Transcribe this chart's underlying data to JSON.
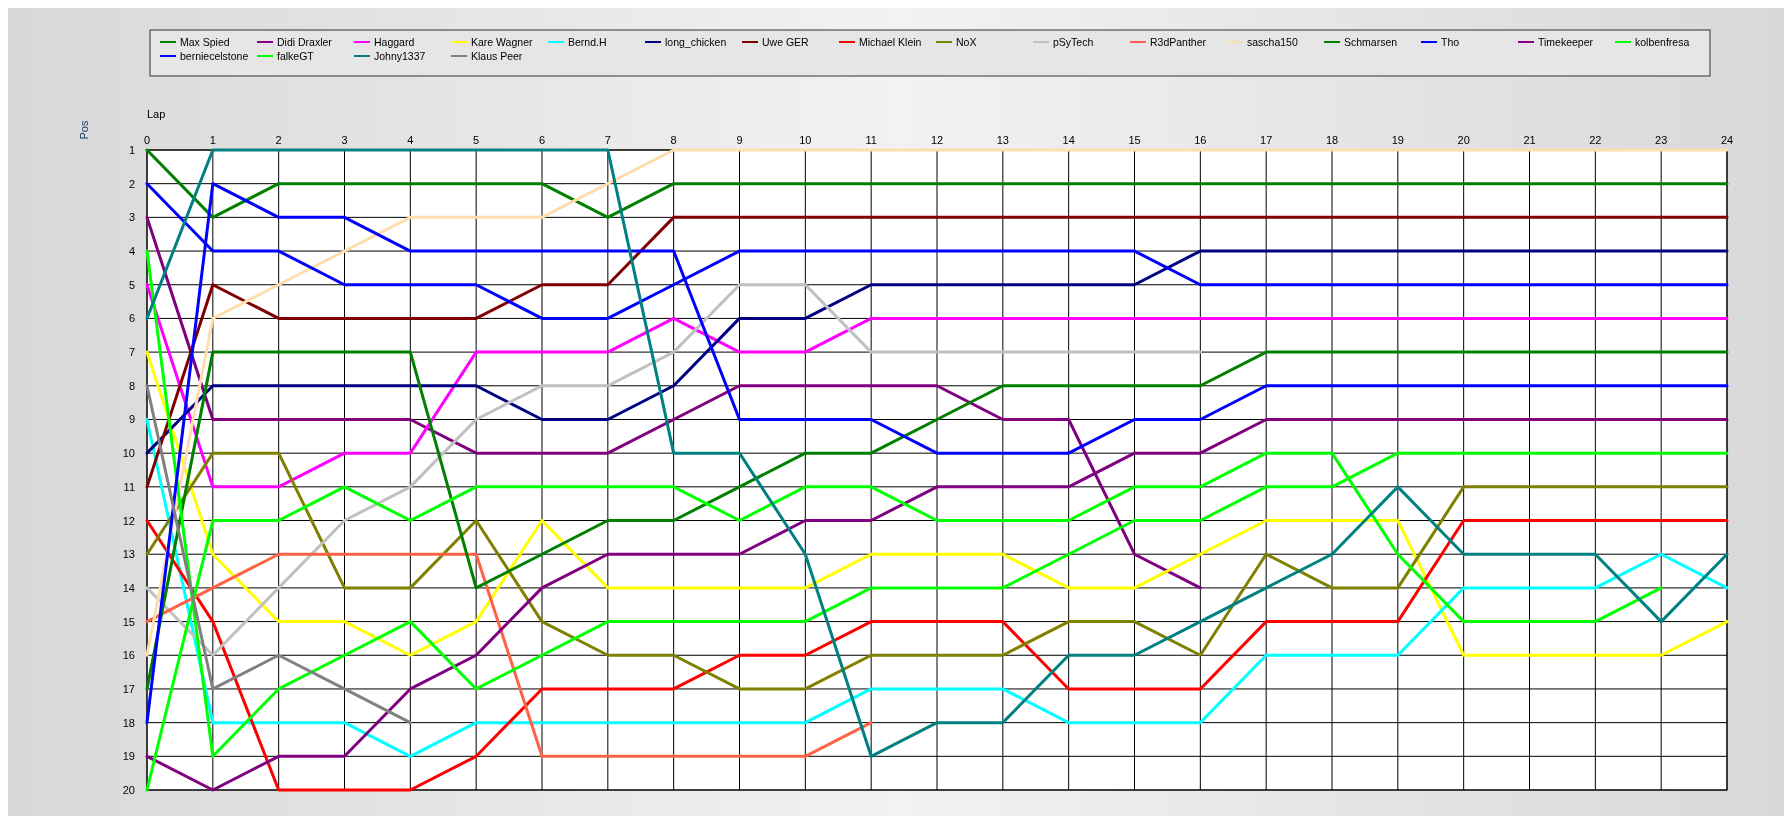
{
  "chart_data": {
    "type": "line",
    "xlabel": "Lap",
    "ylabel": "Pos",
    "legend": "top",
    "grid": true,
    "x": [
      0,
      1,
      2,
      3,
      4,
      5,
      6,
      7,
      8,
      9,
      10,
      11,
      12,
      13,
      14,
      15,
      16,
      17,
      18,
      19,
      20,
      21,
      22,
      23,
      24
    ],
    "xlim": [
      0,
      24
    ],
    "xticks": [
      0,
      1,
      2,
      3,
      4,
      5,
      6,
      7,
      8,
      9,
      10,
      11,
      12,
      13,
      14,
      15,
      16,
      17,
      18,
      19,
      20,
      21,
      22,
      23,
      24
    ],
    "ylim": [
      20,
      1
    ],
    "yticks": [
      1,
      2,
      3,
      4,
      5,
      6,
      7,
      8,
      9,
      10,
      11,
      12,
      13,
      14,
      15,
      16,
      17,
      18,
      19,
      20
    ],
    "series": [
      {
        "name": "Max Spied",
        "color": "#008000",
        "values": [
          1,
          3,
          2,
          2,
          2,
          2,
          2,
          3,
          2,
          2,
          2,
          2,
          2,
          2,
          2,
          2,
          2,
          2,
          2,
          2,
          2,
          2,
          2,
          2,
          2
        ]
      },
      {
        "name": "Didi Draxler",
        "color": "#800080",
        "values": [
          3,
          9,
          9,
          9,
          9,
          10,
          10,
          10,
          9,
          8,
          8,
          8,
          8,
          9,
          9,
          13,
          14,
          null,
          null,
          null,
          null,
          null,
          null,
          null,
          null
        ]
      },
      {
        "name": "Haggard",
        "color": "#ff00ff",
        "values": [
          5,
          11,
          11,
          10,
          10,
          7,
          7,
          7,
          6,
          7,
          7,
          6,
          6,
          6,
          6,
          6,
          6,
          6,
          6,
          6,
          6,
          6,
          6,
          6,
          6
        ]
      },
      {
        "name": "Kare Wagner",
        "color": "#ffff00",
        "values": [
          7,
          13,
          15,
          15,
          16,
          15,
          12,
          14,
          14,
          14,
          14,
          13,
          13,
          13,
          14,
          14,
          13,
          12,
          12,
          12,
          16,
          16,
          16,
          16,
          15
        ]
      },
      {
        "name": "Bernd.H",
        "color": "#00ffff",
        "values": [
          9,
          18,
          18,
          18,
          19,
          18,
          18,
          18,
          18,
          18,
          18,
          17,
          17,
          17,
          18,
          18,
          18,
          16,
          16,
          16,
          14,
          14,
          14,
          13,
          14
        ]
      },
      {
        "name": "long_chicken",
        "color": "#000080",
        "values": [
          10,
          8,
          8,
          8,
          8,
          8,
          9,
          9,
          8,
          6,
          6,
          5,
          5,
          5,
          5,
          5,
          4,
          4,
          4,
          4,
          4,
          4,
          4,
          4,
          4
        ]
      },
      {
        "name": "Uwe GER",
        "color": "#800000",
        "values": [
          11,
          5,
          6,
          6,
          6,
          6,
          5,
          5,
          3,
          3,
          3,
          3,
          3,
          3,
          3,
          3,
          3,
          3,
          3,
          3,
          3,
          3,
          3,
          3,
          3
        ]
      },
      {
        "name": "Michael Klein",
        "color": "#ff0000",
        "values": [
          12,
          15,
          20,
          20,
          20,
          19,
          17,
          17,
          17,
          16,
          16,
          15,
          15,
          15,
          17,
          17,
          17,
          15,
          15,
          15,
          12,
          12,
          12,
          12,
          12
        ]
      },
      {
        "name": "NoX",
        "color": "#808000",
        "values": [
          13,
          10,
          10,
          14,
          14,
          12,
          15,
          16,
          16,
          17,
          17,
          16,
          16,
          16,
          15,
          15,
          16,
          13,
          14,
          14,
          11,
          11,
          11,
          11,
          11
        ]
      },
      {
        "name": "pSyTech",
        "color": "#c0c0c0",
        "values": [
          14,
          16,
          14,
          12,
          11,
          9,
          8,
          8,
          7,
          5,
          5,
          7,
          7,
          7,
          7,
          7,
          7,
          null,
          null,
          null,
          null,
          null,
          null,
          null,
          null
        ]
      },
      {
        "name": "R3dPanther",
        "color": "#ff6347",
        "values": [
          15,
          14,
          13,
          13,
          13,
          13,
          19,
          19,
          19,
          19,
          19,
          18,
          null,
          null,
          null,
          null,
          null,
          null,
          null,
          null,
          null,
          null,
          null,
          null,
          null
        ]
      },
      {
        "name": "sascha150",
        "color": "#ffdead",
        "values": [
          16,
          6,
          5,
          4,
          3,
          3,
          3,
          2,
          1,
          1,
          1,
          1,
          1,
          1,
          1,
          1,
          1,
          1,
          1,
          1,
          1,
          1,
          1,
          1,
          1
        ]
      },
      {
        "name": "Schmarsen",
        "color": "#008000",
        "values": [
          17,
          7,
          7,
          7,
          7,
          14,
          13,
          12,
          12,
          11,
          10,
          10,
          9,
          8,
          8,
          8,
          8,
          7,
          7,
          7,
          7,
          7,
          7,
          7,
          7
        ]
      },
      {
        "name": "Tho",
        "color": "#0000ff",
        "values": [
          2,
          4,
          4,
          5,
          5,
          5,
          6,
          6,
          5,
          4,
          4,
          4,
          4,
          4,
          4,
          4,
          5,
          5,
          5,
          5,
          5,
          5,
          5,
          5,
          5
        ]
      },
      {
        "name": "Timekeeper",
        "color": "#800080",
        "values": [
          19,
          20,
          19,
          19,
          17,
          16,
          14,
          13,
          13,
          13,
          12,
          12,
          11,
          11,
          11,
          10,
          10,
          9,
          9,
          9,
          9,
          9,
          9,
          9,
          9
        ]
      },
      {
        "name": "kolbenfresa",
        "color": "#00ff00",
        "values": [
          4,
          19,
          17,
          16,
          15,
          17,
          16,
          15,
          15,
          15,
          15,
          14,
          14,
          14,
          13,
          12,
          12,
          11,
          11,
          10,
          10,
          10,
          10,
          10,
          10
        ]
      },
      {
        "name": "berniecelstone",
        "color": "#0000ff",
        "values": [
          18,
          2,
          3,
          3,
          4,
          4,
          4,
          4,
          4,
          9,
          9,
          9,
          10,
          10,
          10,
          9,
          9,
          8,
          8,
          8,
          8,
          8,
          8,
          8,
          8
        ]
      },
      {
        "name": "falkeGT",
        "color": "#00ff00",
        "values": [
          20,
          12,
          12,
          11,
          12,
          11,
          11,
          11,
          11,
          12,
          11,
          11,
          12,
          12,
          12,
          11,
          11,
          10,
          10,
          13,
          15,
          15,
          15,
          14,
          null
        ]
      },
      {
        "name": "Johny1337",
        "color": "#008080",
        "values": [
          6,
          1,
          1,
          1,
          1,
          1,
          1,
          1,
          10,
          10,
          13,
          19,
          18,
          18,
          16,
          16,
          15,
          14,
          13,
          11,
          13,
          13,
          13,
          15,
          13
        ]
      },
      {
        "name": "Klaus Peer",
        "color": "#808080",
        "values": [
          8,
          17,
          16,
          17,
          18,
          null,
          null,
          null,
          null,
          null,
          null,
          null,
          null,
          null,
          null,
          null,
          null,
          null,
          null,
          null,
          null,
          null,
          null,
          null,
          null
        ]
      }
    ]
  }
}
